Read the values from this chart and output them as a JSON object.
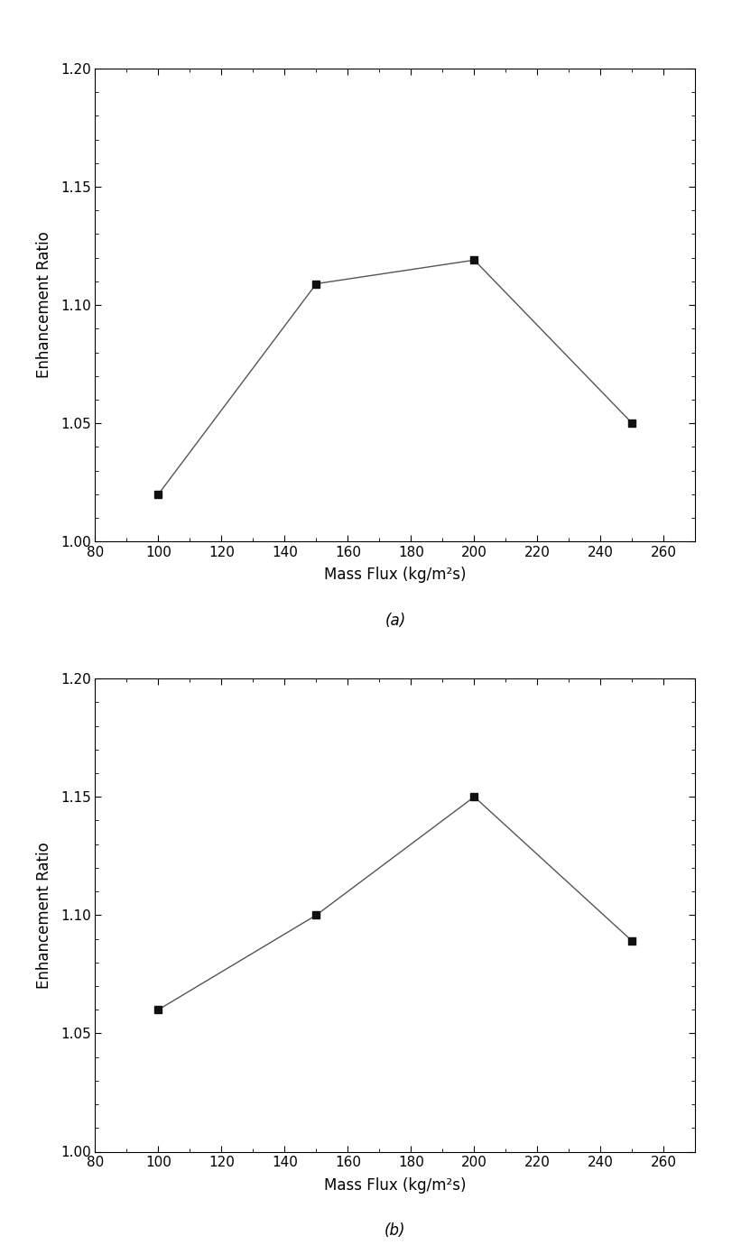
{
  "plot_a": {
    "x": [
      100,
      150,
      200,
      250
    ],
    "y": [
      1.02,
      1.109,
      1.119,
      1.05
    ],
    "xlabel": "Mass Flux (kg/m²s)",
    "ylabel": "Enhancement Ratio",
    "xlim": [
      80,
      270
    ],
    "ylim": [
      1.0,
      1.2
    ],
    "xticks": [
      80,
      100,
      120,
      140,
      160,
      180,
      200,
      220,
      240,
      260
    ],
    "yticks": [
      1.0,
      1.05,
      1.1,
      1.15,
      1.2
    ],
    "label": "(a)"
  },
  "plot_b": {
    "x": [
      100,
      150,
      200,
      250
    ],
    "y": [
      1.06,
      1.1,
      1.15,
      1.089
    ],
    "xlabel": "Mass Flux (kg/m²s)",
    "ylabel": "Enhancement Ratio",
    "xlim": [
      80,
      270
    ],
    "ylim": [
      1.0,
      1.2
    ],
    "xticks": [
      80,
      100,
      120,
      140,
      160,
      180,
      200,
      220,
      240,
      260
    ],
    "yticks": [
      1.0,
      1.05,
      1.1,
      1.15,
      1.2
    ],
    "label": "(b)"
  },
  "line_color": "#555555",
  "marker": "s",
  "marker_color": "#111111",
  "marker_size": 6,
  "line_width": 1.0,
  "font_size_label": 12,
  "font_size_tick": 11,
  "font_size_caption": 12,
  "background_color": "#ffffff"
}
